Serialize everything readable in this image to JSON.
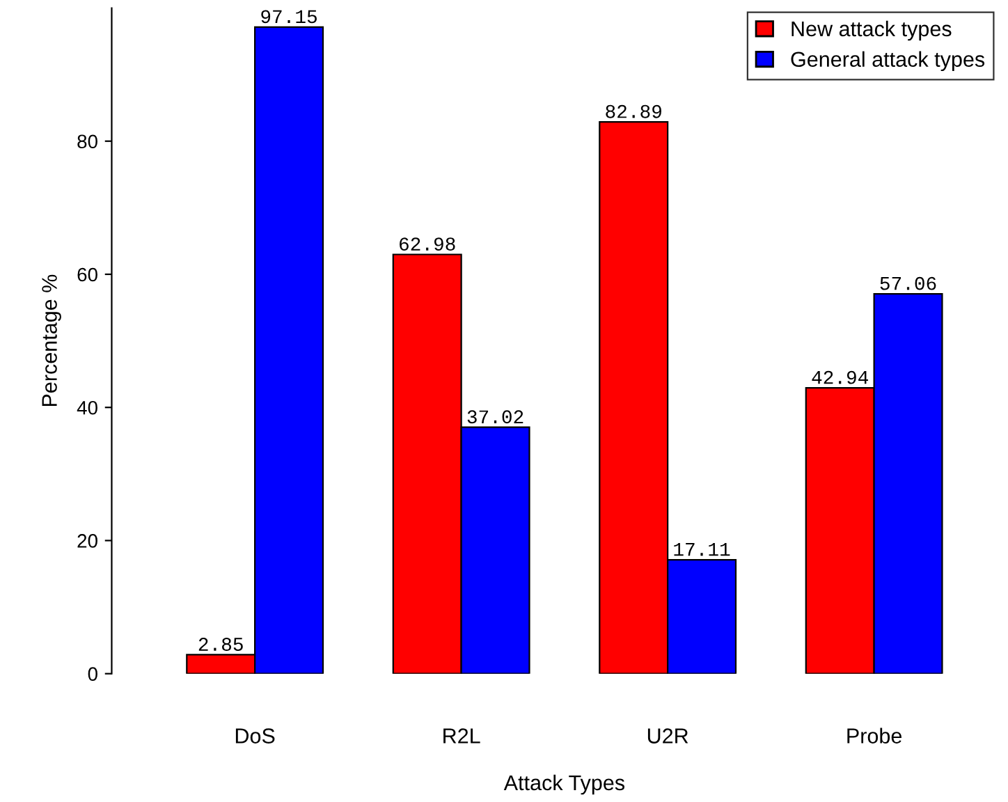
{
  "chart_data": {
    "type": "bar",
    "xlabel": "Attack Types",
    "ylabel": "Percentage %",
    "categories": [
      "DoS",
      "R2L",
      "U2R",
      "Probe"
    ],
    "series": [
      {
        "name": "New attack types",
        "color": "#ff0000",
        "values": [
          2.85,
          62.98,
          82.89,
          42.94
        ]
      },
      {
        "name": "General attack types",
        "color": "#0000ff",
        "values": [
          97.15,
          37.02,
          17.11,
          57.06
        ]
      }
    ],
    "ylim": [
      0,
      100
    ],
    "yticks": [
      0,
      20,
      40,
      60,
      80
    ],
    "data_labels": true,
    "legend": "top right",
    "grid": false
  }
}
